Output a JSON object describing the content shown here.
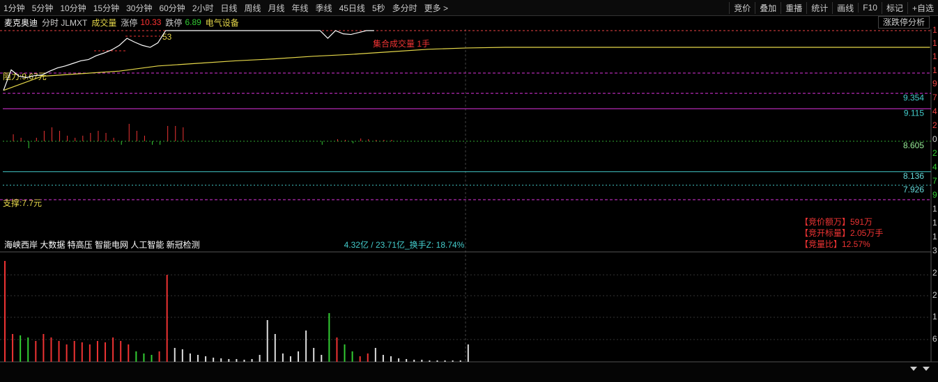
{
  "toolbar": {
    "periods": [
      "1分钟",
      "5分钟",
      "10分钟",
      "15分钟",
      "30分钟",
      "60分钟",
      "2小时",
      "日线",
      "周线",
      "月线",
      "年线",
      "季线",
      "45日线",
      "5秒",
      "多分时",
      "更多 >"
    ],
    "tools": [
      "竞价",
      "叠加",
      "重播",
      "统计",
      "画线",
      "F10",
      "标记",
      "+自选"
    ]
  },
  "info": {
    "name": "麦克奥迪",
    "period": "分时 JLMXT",
    "indicator": "成交量",
    "limit_up": {
      "label": "涨停",
      "value": 10.33
    },
    "limit_down": {
      "label": "跌停",
      "value": 6.89
    },
    "sector": "电气设备",
    "analysis": "涨跌停分析"
  },
  "chart": {
    "peak_label": "53",
    "auction_volume": "集合成交量 1手",
    "resistance": {
      "label": "阻力:9.67元",
      "value": 9.67
    },
    "support": {
      "label": "支撑:7.7元",
      "value": 7.7
    },
    "levels": [
      9.354,
      9.115,
      8.605,
      8.136,
      7.926
    ],
    "right_axis": [
      "1",
      "1",
      "1",
      "1",
      "9",
      "7",
      "4",
      "2",
      "0",
      "2",
      "4",
      "7",
      "9",
      "1",
      "1",
      "1",
      "3",
      "2",
      "2",
      "1",
      "6"
    ],
    "price": [
      9.4,
      9.72,
      9.62,
      9.6,
      9.63,
      9.64,
      9.7,
      9.75,
      9.78,
      9.82,
      9.86,
      9.88,
      9.94,
      9.98,
      10.03,
      10.1,
      10.21,
      10.15,
      10.1,
      10.07,
      10.14,
      10.33,
      10.33,
      10.33,
      10.33,
      10.33,
      10.33,
      10.33,
      10.33,
      10.33,
      10.33,
      10.33,
      10.33,
      10.33,
      10.33,
      10.33,
      10.33,
      10.33,
      10.33,
      10.33,
      10.33,
      10.33,
      10.21,
      10.33,
      10.28,
      10.27,
      10.3,
      10.33,
      10.33
    ],
    "avg": [
      9.4,
      9.62,
      9.66,
      9.7,
      9.78,
      9.82,
      9.86,
      9.89,
      9.93,
      9.96,
      10.0,
      10.04,
      10.06,
      10.07,
      10.07,
      10.07,
      10.07,
      10.07,
      10.07,
      10.07,
      10.07,
      10.07,
      10.07,
      10.07,
      10.07
    ],
    "indicator": [
      0,
      10,
      5,
      -10,
      5,
      15,
      20,
      15,
      8,
      5,
      8,
      12,
      15,
      12,
      5,
      -5,
      25,
      15,
      8,
      -5,
      -5,
      22,
      22,
      20,
      0,
      0,
      0,
      0,
      0,
      0,
      0,
      0,
      0,
      0,
      0,
      0,
      0,
      0,
      0,
      0,
      0,
      -5,
      0,
      3,
      2,
      -3,
      4,
      3,
      2,
      2,
      2
    ],
    "volume": [
      145,
      40,
      38,
      35,
      30,
      40,
      35,
      30,
      25,
      30,
      28,
      25,
      30,
      28,
      35,
      30,
      25,
      15,
      12,
      10,
      15,
      125,
      20,
      18,
      12,
      10,
      8,
      6,
      5,
      4,
      4,
      3,
      4,
      10,
      60,
      40,
      12,
      8,
      15,
      45,
      20,
      10,
      70,
      35,
      25,
      15,
      8,
      12,
      20,
      10,
      8,
      5,
      4,
      3,
      3,
      2,
      2,
      2,
      2,
      2,
      25
    ]
  },
  "footer": {
    "concepts": "海峡西岸 大数据 特高压 智能电网 人工智能 新冠检测",
    "turnover": "4.32亿 / 23.71亿_换手Z: 18.74%",
    "auction": [
      "【竞价额万】591万",
      "【竞开标量】2.05万手",
      "【竞量比】12.57%"
    ]
  }
}
